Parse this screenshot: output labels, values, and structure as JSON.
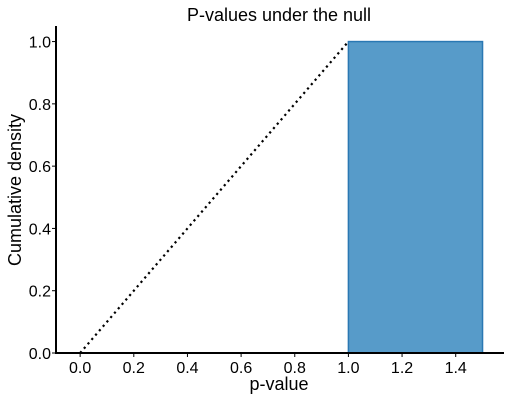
{
  "chart_data": {
    "type": "bar",
    "title": "P-values under the null",
    "xlabel": "p-value",
    "ylabel": "Cumulative density",
    "xlim": [
      -0.09,
      1.58
    ],
    "ylim": [
      0.0,
      1.05
    ],
    "xticks": [
      "0.0",
      "0.2",
      "0.4",
      "0.6",
      "0.8",
      "1.0",
      "1.2",
      "1.4"
    ],
    "yticks": [
      "0.0",
      "0.2",
      "0.4",
      "0.6",
      "0.8",
      "1.0"
    ],
    "bins": [
      {
        "x0": 1.0,
        "x1": 1.5,
        "value": 1.0
      }
    ],
    "reference_line": {
      "style": "dotted",
      "points": [
        [
          0.0,
          0.0
        ],
        [
          1.0,
          1.0
        ]
      ]
    },
    "grid": false,
    "colors": {
      "bar_fill": "#579bc9",
      "bar_edge": "#2a78b3",
      "line": "#000000"
    }
  }
}
